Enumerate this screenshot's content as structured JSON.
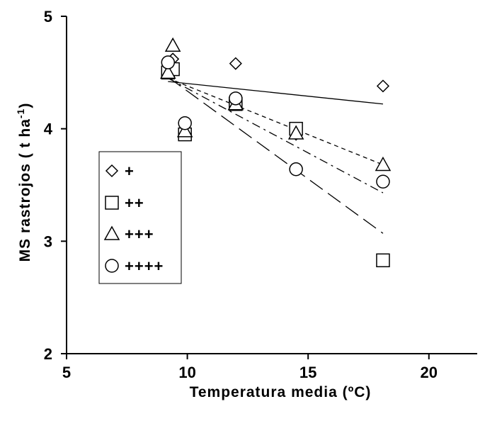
{
  "chart_data": {
    "type": "scatter",
    "xlabel": "Temperatura media (ºC)",
    "ylabel_main": "MS rastrojos ( t ha",
    "ylabel_sup": "-1",
    "ylabel_close": ")",
    "xlim": [
      5,
      22
    ],
    "ylim": [
      2,
      5
    ],
    "xticks": [
      "5",
      "10",
      "15",
      "20"
    ],
    "yticks": [
      "2",
      "3",
      "4",
      "5"
    ],
    "grid": false,
    "legend_position": "middle-left",
    "series": [
      {
        "name": "+",
        "marker": "diamond",
        "line_style": "solid",
        "points": [
          [
            9.2,
            4.5
          ],
          [
            9.4,
            4.62
          ],
          [
            9.9,
            4.0
          ],
          [
            12.0,
            4.58
          ],
          [
            14.5,
            3.95
          ],
          [
            18.1,
            4.38
          ]
        ],
        "trend": [
          [
            9.2,
            4.42
          ],
          [
            18.1,
            4.22
          ]
        ]
      },
      {
        "name": "++",
        "marker": "square",
        "line_style": "short-dash",
        "points": [
          [
            9.2,
            4.5
          ],
          [
            9.4,
            4.53
          ],
          [
            9.9,
            3.95
          ],
          [
            12.0,
            4.22
          ],
          [
            14.5,
            4.0
          ],
          [
            18.1,
            2.83
          ]
        ],
        "trend": [
          [
            9.2,
            4.45
          ],
          [
            18.1,
            3.68
          ]
        ]
      },
      {
        "name": "+++",
        "marker": "triangle",
        "line_style": "dash-dot",
        "points": [
          [
            9.2,
            4.5
          ],
          [
            9.4,
            4.74
          ],
          [
            9.9,
            3.98
          ],
          [
            12.0,
            4.22
          ],
          [
            14.5,
            3.96
          ],
          [
            18.1,
            3.68
          ]
        ],
        "trend": [
          [
            9.2,
            4.45
          ],
          [
            18.1,
            3.43
          ]
        ]
      },
      {
        "name": "++++",
        "marker": "circle",
        "line_style": "long-dash",
        "points": [
          [
            9.2,
            4.59
          ],
          [
            9.9,
            4.05
          ],
          [
            12.0,
            4.27
          ],
          [
            14.5,
            3.64
          ],
          [
            18.1,
            3.53
          ]
        ],
        "trend": [
          [
            9.2,
            4.46
          ],
          [
            18.1,
            3.07
          ]
        ]
      }
    ]
  }
}
